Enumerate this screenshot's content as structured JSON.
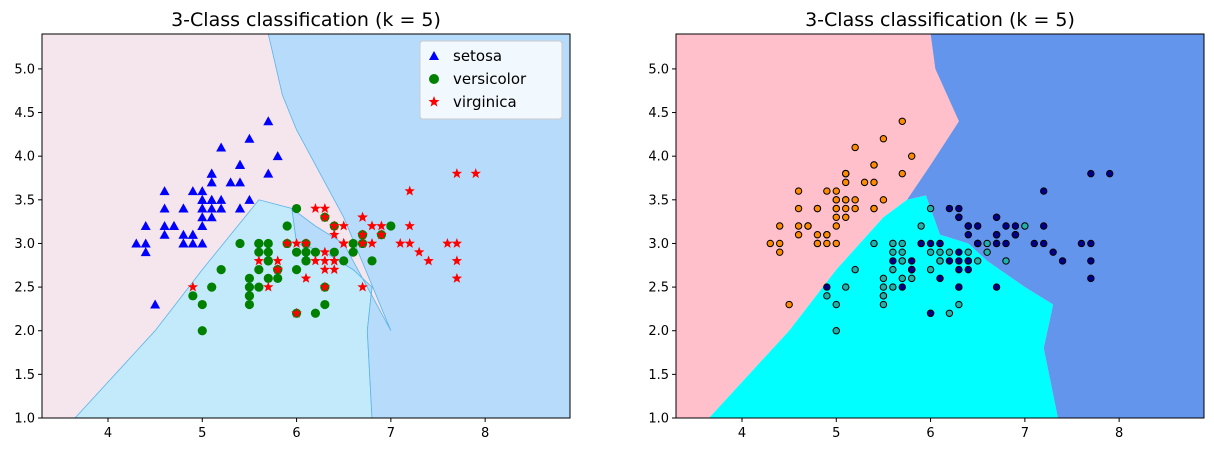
{
  "chart_data": [
    {
      "type": "scatter",
      "title": "3-Class classification (k = 5)",
      "xlabel": "",
      "ylabel": "",
      "xlim": [
        3.3,
        8.9
      ],
      "ylim": [
        1.0,
        5.4
      ],
      "xticks": [
        4,
        5,
        6,
        7,
        8
      ],
      "yticks": [
        1.0,
        1.5,
        2.0,
        2.5,
        3.0,
        3.5,
        4.0,
        4.5,
        5.0
      ],
      "grid": false,
      "legend_position": "top-right",
      "regions": [
        {
          "color": "#f5e6ee",
          "boundary": [
            [
              3.3,
              5.4
            ],
            [
              5.7,
              5.4
            ],
            [
              5.85,
              4.7
            ],
            [
              6.0,
              4.3
            ],
            [
              6.25,
              3.8
            ],
            [
              6.45,
              3.5
            ],
            [
              6.9,
              3.3
            ],
            [
              7.2,
              3.1
            ],
            [
              7.25,
              2.8
            ],
            [
              7.1,
              2.5
            ],
            [
              7.0,
              2.0
            ],
            [
              7.2,
              1.0
            ],
            [
              3.65,
              1.0
            ],
            [
              4.5,
              2.0
            ],
            [
              5.0,
              2.7
            ],
            [
              5.6,
              3.5
            ],
            [
              5.95,
              3.4
            ],
            [
              6.2,
              3.2
            ],
            [
              6.5,
              3.0
            ]
          ]
        },
        {
          "color": "#c2eafa",
          "polygon": [
            [
              3.65,
              1.0
            ],
            [
              4.5,
              2.0
            ],
            [
              5.0,
              2.7
            ],
            [
              5.6,
              3.5
            ],
            [
              5.95,
              3.4
            ],
            [
              6.0,
              3.0
            ],
            [
              6.3,
              2.9
            ],
            [
              6.6,
              2.7
            ],
            [
              6.8,
              2.5
            ],
            [
              6.75,
              2.0
            ],
            [
              6.8,
              1.0
            ]
          ]
        },
        {
          "color": "#b7dcfb",
          "polygon": [
            [
              5.7,
              5.4
            ],
            [
              8.9,
              5.4
            ],
            [
              8.9,
              1.0
            ],
            [
              6.8,
              1.0
            ],
            [
              6.75,
              2.0
            ],
            [
              6.8,
              2.5
            ],
            [
              6.6,
              2.7
            ],
            [
              6.3,
              2.9
            ],
            [
              6.0,
              3.0
            ],
            [
              5.95,
              3.4
            ],
            [
              6.2,
              3.2
            ],
            [
              6.5,
              3.0
            ],
            [
              7.0,
              2.0
            ],
            [
              6.5,
              3.3
            ],
            [
              6.25,
              3.8
            ],
            [
              6.0,
              4.3
            ],
            [
              5.85,
              4.7
            ]
          ]
        }
      ],
      "series": [
        {
          "name": "setosa",
          "marker": "triangle",
          "color": "#0000ff",
          "points": [
            [
              5.1,
              3.5
            ],
            [
              4.9,
              3.0
            ],
            [
              4.7,
              3.2
            ],
            [
              4.6,
              3.1
            ],
            [
              5.0,
              3.6
            ],
            [
              5.4,
              3.9
            ],
            [
              4.6,
              3.4
            ],
            [
              5.0,
              3.4
            ],
            [
              4.4,
              2.9
            ],
            [
              4.9,
              3.1
            ],
            [
              5.4,
              3.7
            ],
            [
              4.8,
              3.4
            ],
            [
              4.8,
              3.0
            ],
            [
              4.3,
              3.0
            ],
            [
              5.8,
              4.0
            ],
            [
              5.7,
              4.4
            ],
            [
              5.4,
              3.9
            ],
            [
              5.1,
              3.5
            ],
            [
              5.7,
              3.8
            ],
            [
              5.1,
              3.8
            ],
            [
              5.4,
              3.4
            ],
            [
              5.1,
              3.7
            ],
            [
              4.6,
              3.6
            ],
            [
              5.1,
              3.3
            ],
            [
              4.8,
              3.4
            ],
            [
              5.0,
              3.0
            ],
            [
              5.0,
              3.4
            ],
            [
              5.2,
              3.5
            ],
            [
              5.2,
              3.4
            ],
            [
              4.7,
              3.2
            ],
            [
              4.8,
              3.1
            ],
            [
              5.4,
              3.4
            ],
            [
              5.2,
              4.1
            ],
            [
              5.5,
              4.2
            ],
            [
              4.9,
              3.1
            ],
            [
              5.0,
              3.2
            ],
            [
              5.5,
              3.5
            ],
            [
              4.9,
              3.6
            ],
            [
              4.4,
              3.0
            ],
            [
              5.1,
              3.4
            ],
            [
              5.0,
              3.5
            ],
            [
              4.5,
              2.3
            ],
            [
              4.4,
              3.2
            ],
            [
              5.0,
              3.5
            ],
            [
              5.1,
              3.8
            ],
            [
              4.8,
              3.0
            ],
            [
              5.1,
              3.8
            ],
            [
              4.6,
              3.2
            ],
            [
              5.3,
              3.7
            ],
            [
              5.0,
              3.3
            ]
          ]
        },
        {
          "name": "versicolor",
          "marker": "circle",
          "color": "#008000",
          "points": [
            [
              7.0,
              3.2
            ],
            [
              6.4,
              3.2
            ],
            [
              6.9,
              3.1
            ],
            [
              5.5,
              2.3
            ],
            [
              6.5,
              2.8
            ],
            [
              5.7,
              2.8
            ],
            [
              6.3,
              3.3
            ],
            [
              4.9,
              2.4
            ],
            [
              6.6,
              2.9
            ],
            [
              5.2,
              2.7
            ],
            [
              5.0,
              2.0
            ],
            [
              5.9,
              3.0
            ],
            [
              6.0,
              2.2
            ],
            [
              6.1,
              2.9
            ],
            [
              5.6,
              2.9
            ],
            [
              6.7,
              3.1
            ],
            [
              5.6,
              3.0
            ],
            [
              5.8,
              2.7
            ],
            [
              6.2,
              2.2
            ],
            [
              5.6,
              2.5
            ],
            [
              5.9,
              3.2
            ],
            [
              6.1,
              2.8
            ],
            [
              6.3,
              2.5
            ],
            [
              6.1,
              2.8
            ],
            [
              6.4,
              2.9
            ],
            [
              6.6,
              3.0
            ],
            [
              6.8,
              2.8
            ],
            [
              6.7,
              3.0
            ],
            [
              6.0,
              2.9
            ],
            [
              5.7,
              2.6
            ],
            [
              5.5,
              2.4
            ],
            [
              5.5,
              2.4
            ],
            [
              5.8,
              2.7
            ],
            [
              6.0,
              2.7
            ],
            [
              5.4,
              3.0
            ],
            [
              6.0,
              3.4
            ],
            [
              6.7,
              3.1
            ],
            [
              6.3,
              2.3
            ],
            [
              5.6,
              3.0
            ],
            [
              5.5,
              2.5
            ],
            [
              5.5,
              2.6
            ],
            [
              6.1,
              3.0
            ],
            [
              5.8,
              2.6
            ],
            [
              5.0,
              2.3
            ],
            [
              5.6,
              2.7
            ],
            [
              5.7,
              3.0
            ],
            [
              5.7,
              2.9
            ],
            [
              6.2,
              2.9
            ],
            [
              5.1,
              2.5
            ],
            [
              5.7,
              2.8
            ]
          ]
        },
        {
          "name": "virginica",
          "marker": "star",
          "color": "#ff0000",
          "points": [
            [
              6.3,
              3.3
            ],
            [
              5.8,
              2.7
            ],
            [
              7.1,
              3.0
            ],
            [
              6.3,
              2.9
            ],
            [
              6.5,
              3.0
            ],
            [
              7.6,
              3.0
            ],
            [
              4.9,
              2.5
            ],
            [
              7.3,
              2.9
            ],
            [
              6.7,
              2.5
            ],
            [
              7.2,
              3.6
            ],
            [
              6.5,
              3.2
            ],
            [
              6.4,
              2.7
            ],
            [
              6.8,
              3.0
            ],
            [
              5.7,
              2.5
            ],
            [
              5.8,
              2.8
            ],
            [
              6.4,
              3.2
            ],
            [
              6.5,
              3.0
            ],
            [
              7.7,
              3.8
            ],
            [
              7.7,
              2.6
            ],
            [
              6.0,
              2.2
            ],
            [
              6.9,
              3.2
            ],
            [
              5.6,
              2.8
            ],
            [
              7.7,
              2.8
            ],
            [
              6.3,
              2.7
            ],
            [
              6.7,
              3.3
            ],
            [
              7.2,
              3.2
            ],
            [
              6.2,
              2.8
            ],
            [
              6.1,
              3.0
            ],
            [
              6.4,
              2.8
            ],
            [
              7.2,
              3.0
            ],
            [
              7.4,
              2.8
            ],
            [
              7.9,
              3.8
            ],
            [
              6.4,
              2.8
            ],
            [
              6.3,
              2.8
            ],
            [
              6.1,
              2.6
            ],
            [
              7.7,
              3.0
            ],
            [
              6.3,
              3.4
            ],
            [
              6.4,
              3.1
            ],
            [
              6.0,
              3.0
            ],
            [
              6.9,
              3.1
            ],
            [
              6.7,
              3.1
            ],
            [
              6.9,
              3.1
            ],
            [
              5.8,
              2.7
            ],
            [
              6.8,
              3.2
            ],
            [
              6.7,
              3.3
            ],
            [
              6.7,
              3.0
            ],
            [
              6.3,
              2.5
            ],
            [
              6.5,
              3.0
            ],
            [
              6.2,
              3.4
            ],
            [
              5.9,
              3.0
            ]
          ]
        }
      ]
    },
    {
      "type": "scatter",
      "title": "3-Class classification (k = 5)",
      "xlabel": "",
      "ylabel": "",
      "xlim": [
        3.3,
        8.9
      ],
      "ylim": [
        1.0,
        5.4
      ],
      "xticks": [
        4,
        5,
        6,
        7,
        8
      ],
      "yticks": [
        1.0,
        1.5,
        2.0,
        2.5,
        3.0,
        3.5,
        4.0,
        4.5,
        5.0
      ],
      "grid": false,
      "regions": [
        {
          "color": "#ffc0cb",
          "polygon": [
            [
              3.3,
              5.4
            ],
            [
              6.0,
              5.4
            ],
            [
              6.05,
              5.0
            ],
            [
              6.3,
              4.4
            ],
            [
              6.0,
              3.9
            ],
            [
              5.75,
              3.5
            ],
            [
              5.5,
              3.3
            ],
            [
              5.0,
              2.7
            ],
            [
              4.5,
              2.0
            ],
            [
              3.65,
              1.0
            ],
            [
              3.3,
              1.0
            ]
          ]
        },
        {
          "color": "#00ffff",
          "polygon": [
            [
              3.65,
              1.0
            ],
            [
              4.5,
              2.0
            ],
            [
              5.0,
              2.7
            ],
            [
              5.5,
              3.3
            ],
            [
              5.75,
              3.5
            ],
            [
              5.95,
              3.55
            ],
            [
              6.0,
              3.4
            ],
            [
              6.1,
              3.1
            ],
            [
              6.4,
              3.0
            ],
            [
              6.6,
              2.8
            ],
            [
              7.0,
              2.5
            ],
            [
              7.3,
              2.3
            ],
            [
              7.2,
              1.8
            ],
            [
              7.35,
              1.0
            ]
          ]
        },
        {
          "color": "#6495ed",
          "polygon": [
            [
              6.0,
              5.4
            ],
            [
              8.9,
              5.4
            ],
            [
              8.9,
              1.0
            ],
            [
              7.35,
              1.0
            ],
            [
              7.2,
              1.8
            ],
            [
              7.3,
              2.3
            ],
            [
              7.0,
              2.5
            ],
            [
              6.6,
              2.8
            ],
            [
              6.4,
              3.0
            ],
            [
              6.1,
              3.1
            ],
            [
              6.0,
              3.4
            ],
            [
              5.95,
              3.55
            ],
            [
              5.75,
              3.5
            ],
            [
              6.0,
              3.9
            ],
            [
              6.3,
              4.4
            ],
            [
              6.05,
              5.0
            ]
          ]
        }
      ],
      "series": [
        {
          "marker": "circle",
          "color": "#ff8c00",
          "points_ref": "setosa"
        },
        {
          "marker": "circle",
          "color": "#20b2aa",
          "points_ref": "versicolor"
        },
        {
          "marker": "circle",
          "color": "#00008b",
          "points_ref": "virginica"
        }
      ]
    }
  ]
}
